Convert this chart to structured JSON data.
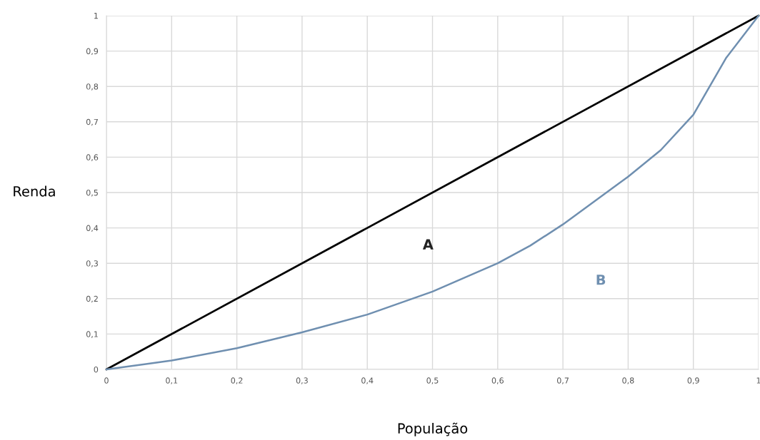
{
  "chart_data": {
    "type": "line",
    "xlabel": "População",
    "ylabel": "Renda",
    "series": [
      {
        "color": "#000000",
        "x": [
          0,
          1
        ],
        "values": [
          0,
          1
        ]
      },
      {
        "color": "#6f8fb0",
        "x": [
          0,
          0.1,
          0.2,
          0.3,
          0.4,
          0.5,
          0.6,
          0.65,
          0.7,
          0.8,
          0.85,
          0.9,
          0.95,
          1
        ],
        "values": [
          0,
          0.025,
          0.06,
          0.105,
          0.155,
          0.22,
          0.3,
          0.35,
          0.41,
          0.545,
          0.62,
          0.72,
          0.88,
          1
        ]
      }
    ],
    "xlim": [
      0,
      1
    ],
    "ylim": [
      0,
      1
    ],
    "xticks": [
      0,
      {
        "value": 0.1,
        "label": "0,1"
      },
      {
        "value": 0.2,
        "label": "0,2"
      },
      {
        "value": 0.3,
        "label": "0,3"
      },
      {
        "value": 0.4,
        "label": "0,4"
      },
      {
        "value": 0.5,
        "label": "0,5"
      },
      {
        "value": 0.6,
        "label": "0,6"
      },
      {
        "value": 0.7,
        "label": "0,7"
      },
      {
        "value": 0.8,
        "label": "0,8"
      },
      {
        "value": 0.9,
        "label": "0,9"
      },
      1
    ],
    "yticks": [
      0,
      {
        "value": 0.1,
        "label": "0,1"
      },
      {
        "value": 0.2,
        "label": "0,2"
      },
      {
        "value": 0.3,
        "label": "0,3"
      },
      {
        "value": 0.4,
        "label": "0,4"
      },
      {
        "value": 0.5,
        "label": "0,5"
      },
      {
        "value": 0.6,
        "label": "0,6"
      },
      {
        "value": 0.7,
        "label": "0,7"
      },
      {
        "value": 0.8,
        "label": "0,8"
      },
      {
        "value": 0.9,
        "label": "0,9"
      },
      1
    ],
    "grid": true,
    "annotations": [
      "A",
      "B"
    ]
  }
}
